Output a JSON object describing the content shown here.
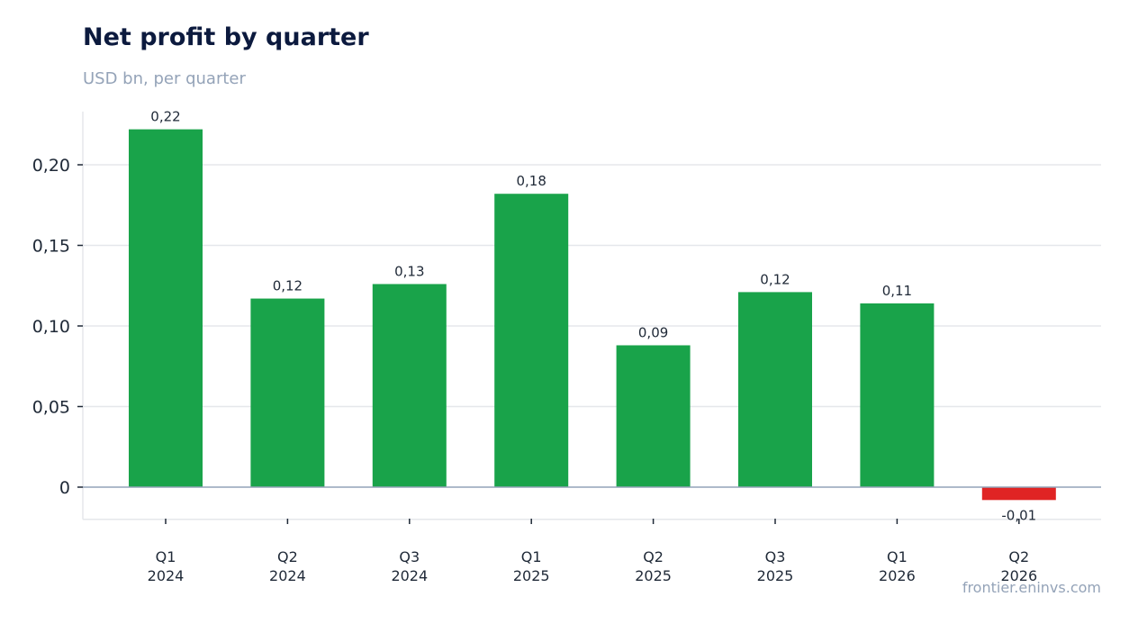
{
  "header": {
    "title": "Net profit by quarter",
    "subtitle": "USD bn, per quarter"
  },
  "footer": {
    "source": "frontier.eninvs.com"
  },
  "colors": {
    "positive": "#19a34a",
    "negative": "#e02424",
    "grid": "#e5e7eb",
    "zero_line": "#94a3b8",
    "frame": "#e5e7eb"
  },
  "chart_data": {
    "type": "bar",
    "categories": [
      [
        "Q1",
        "2024"
      ],
      [
        "Q2",
        "2024"
      ],
      [
        "Q3",
        "2024"
      ],
      [
        "Q1",
        "2025"
      ],
      [
        "Q2",
        "2025"
      ],
      [
        "Q3",
        "2025"
      ],
      [
        "Q1",
        "2026"
      ],
      [
        "Q2",
        "2026"
      ]
    ],
    "values": [
      0.222,
      0.117,
      0.126,
      0.182,
      0.088,
      0.121,
      0.114,
      -0.008
    ],
    "data_labels": [
      "0,22",
      "0,12",
      "0,13",
      "0,18",
      "0,09",
      "0,12",
      "0,11",
      "-0,01"
    ],
    "yticks": [
      0,
      0.05,
      0.1,
      0.15,
      0.2
    ],
    "ytick_labels": [
      "0",
      "0,05",
      "0,10",
      "0,15",
      "0,20"
    ],
    "ylim": [
      -0.02,
      0.233
    ],
    "grid": true,
    "legend": "none"
  }
}
